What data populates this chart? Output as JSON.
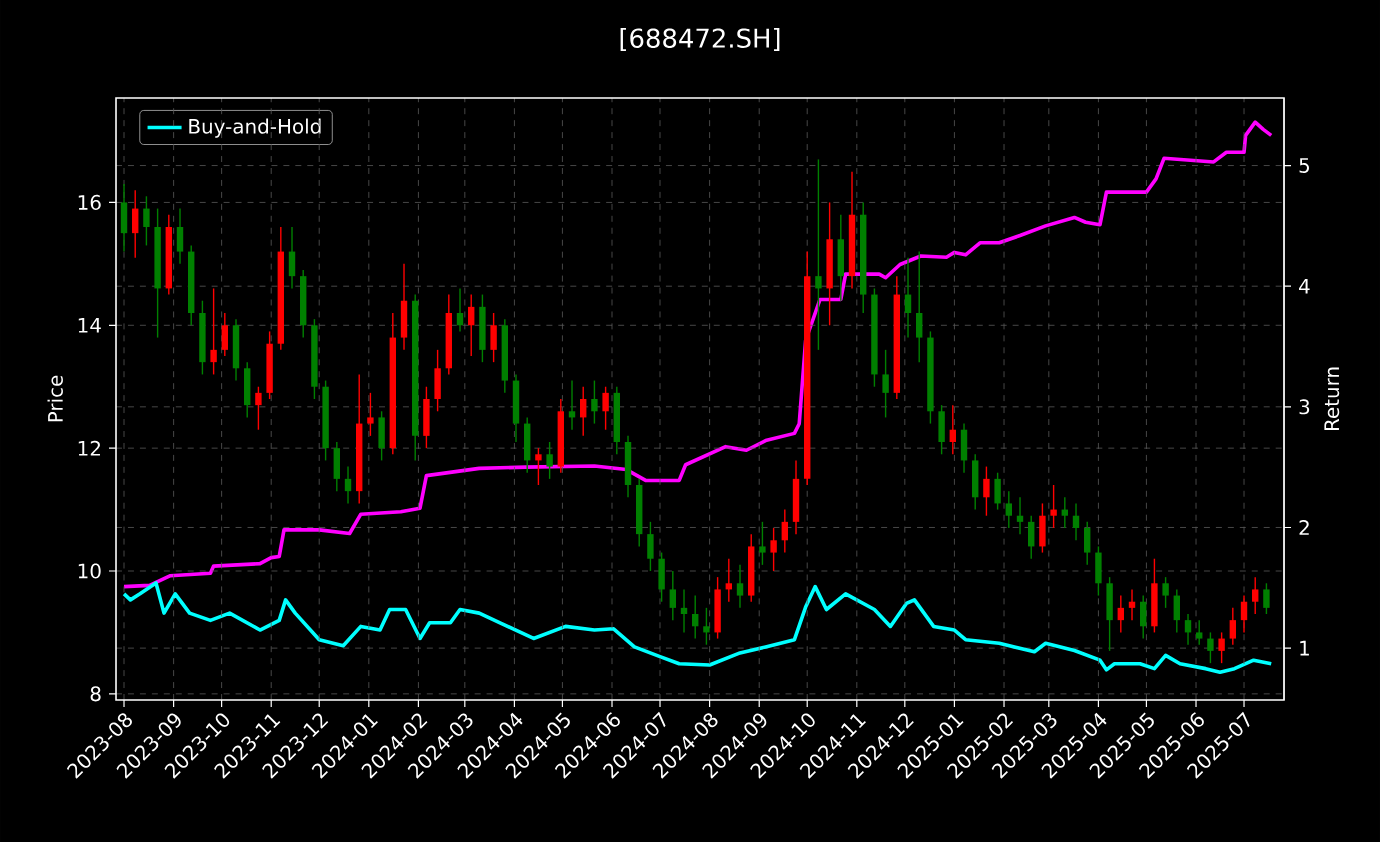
{
  "chart_data": {
    "type": "candlestick",
    "title": "[688472.SH]",
    "ylabel": "Price",
    "y2label": "Return",
    "x": [
      "2023-08-01",
      "2023-08-08",
      "2023-08-15",
      "2023-08-22",
      "2023-08-29",
      "2023-09-05",
      "2023-09-12",
      "2023-09-19",
      "2023-09-26",
      "2023-10-03",
      "2023-10-10",
      "2023-10-17",
      "2023-10-24",
      "2023-10-31",
      "2023-11-07",
      "2023-11-14",
      "2023-11-21",
      "2023-11-28",
      "2023-12-05",
      "2023-12-12",
      "2023-12-19",
      "2023-12-26",
      "2024-01-02",
      "2024-01-09",
      "2024-01-16",
      "2024-01-23",
      "2024-01-30",
      "2024-02-06",
      "2024-02-13",
      "2024-02-20",
      "2024-02-27",
      "2024-03-05",
      "2024-03-12",
      "2024-03-19",
      "2024-03-26",
      "2024-04-02",
      "2024-04-09",
      "2024-04-16",
      "2024-04-23",
      "2024-04-30",
      "2024-05-07",
      "2024-05-14",
      "2024-05-21",
      "2024-05-28",
      "2024-06-04",
      "2024-06-11",
      "2024-06-18",
      "2024-06-25",
      "2024-07-02",
      "2024-07-09",
      "2024-07-16",
      "2024-07-23",
      "2024-07-30",
      "2024-08-06",
      "2024-08-13",
      "2024-08-20",
      "2024-08-27",
      "2024-09-03",
      "2024-09-10",
      "2024-09-17",
      "2024-09-24",
      "2024-10-01",
      "2024-10-08",
      "2024-10-15",
      "2024-10-22",
      "2024-10-29",
      "2024-11-05",
      "2024-11-12",
      "2024-11-19",
      "2024-11-26",
      "2024-12-03",
      "2024-12-10",
      "2024-12-17",
      "2024-12-24",
      "2024-12-31",
      "2025-01-07",
      "2025-01-14",
      "2025-01-21",
      "2025-01-28",
      "2025-02-04",
      "2025-02-11",
      "2025-02-18",
      "2025-02-25",
      "2025-03-04",
      "2025-03-11",
      "2025-03-18",
      "2025-03-25",
      "2025-04-01",
      "2025-04-08",
      "2025-04-15",
      "2025-04-22",
      "2025-04-29",
      "2025-05-06",
      "2025-05-13",
      "2025-05-20",
      "2025-05-27",
      "2025-06-03",
      "2025-06-10",
      "2025-06-17",
      "2025-06-24",
      "2025-07-01",
      "2025-07-08",
      "2025-07-15"
    ],
    "ohlc": [
      [
        16.0,
        16.3,
        15.2,
        15.5
      ],
      [
        15.5,
        16.2,
        15.1,
        15.9
      ],
      [
        15.9,
        16.1,
        15.3,
        15.6
      ],
      [
        15.6,
        15.9,
        13.8,
        14.6
      ],
      [
        14.6,
        15.8,
        14.5,
        15.6
      ],
      [
        15.6,
        15.9,
        15.0,
        15.2
      ],
      [
        15.2,
        15.3,
        14.0,
        14.2
      ],
      [
        14.2,
        14.4,
        13.2,
        13.4
      ],
      [
        13.4,
        14.6,
        13.2,
        13.6
      ],
      [
        13.6,
        14.2,
        13.5,
        14.0
      ],
      [
        14.0,
        14.1,
        13.1,
        13.3
      ],
      [
        13.3,
        13.4,
        12.5,
        12.7
      ],
      [
        12.7,
        13.0,
        12.3,
        12.9
      ],
      [
        12.9,
        13.9,
        12.8,
        13.7
      ],
      [
        13.7,
        15.6,
        13.6,
        15.2
      ],
      [
        15.2,
        15.6,
        14.6,
        14.8
      ],
      [
        14.8,
        14.9,
        13.8,
        14.0
      ],
      [
        14.0,
        14.1,
        12.8,
        13.0
      ],
      [
        13.0,
        13.1,
        11.8,
        12.0
      ],
      [
        12.0,
        12.1,
        11.3,
        11.5
      ],
      [
        11.5,
        11.7,
        11.1,
        11.3
      ],
      [
        11.3,
        13.2,
        11.1,
        12.4
      ],
      [
        12.4,
        12.9,
        12.2,
        12.5
      ],
      [
        12.5,
        12.6,
        11.8,
        12.0
      ],
      [
        12.0,
        14.2,
        11.9,
        13.8
      ],
      [
        13.8,
        15.0,
        13.6,
        14.4
      ],
      [
        14.4,
        14.5,
        11.8,
        12.2
      ],
      [
        12.2,
        13.0,
        12.0,
        12.8
      ],
      [
        12.8,
        13.6,
        12.6,
        13.3
      ],
      [
        13.3,
        14.5,
        13.2,
        14.2
      ],
      [
        14.2,
        14.6,
        13.9,
        14.0
      ],
      [
        14.0,
        14.5,
        13.5,
        14.3
      ],
      [
        14.3,
        14.5,
        13.4,
        13.6
      ],
      [
        13.6,
        14.2,
        13.4,
        14.0
      ],
      [
        14.0,
        14.1,
        12.9,
        13.1
      ],
      [
        13.1,
        13.2,
        12.1,
        12.4
      ],
      [
        12.4,
        12.5,
        11.6,
        11.8
      ],
      [
        11.8,
        12.0,
        11.4,
        11.9
      ],
      [
        11.9,
        12.1,
        11.5,
        11.7
      ],
      [
        11.7,
        12.8,
        11.6,
        12.6
      ],
      [
        12.6,
        13.1,
        12.3,
        12.5
      ],
      [
        12.5,
        13.0,
        12.2,
        12.8
      ],
      [
        12.8,
        13.1,
        12.4,
        12.6
      ],
      [
        12.6,
        13.0,
        12.3,
        12.9
      ],
      [
        12.9,
        13.0,
        11.9,
        12.1
      ],
      [
        12.1,
        12.2,
        11.2,
        11.4
      ],
      [
        11.4,
        11.5,
        10.4,
        10.6
      ],
      [
        10.6,
        10.8,
        10.0,
        10.2
      ],
      [
        10.2,
        10.3,
        9.5,
        9.7
      ],
      [
        9.7,
        10.0,
        9.2,
        9.4
      ],
      [
        9.4,
        9.7,
        9.0,
        9.3
      ],
      [
        9.3,
        9.6,
        8.9,
        9.1
      ],
      [
        9.1,
        9.4,
        8.8,
        9.0
      ],
      [
        9.0,
        9.9,
        8.9,
        9.7
      ],
      [
        9.7,
        10.2,
        9.5,
        9.8
      ],
      [
        9.8,
        10.1,
        9.4,
        9.6
      ],
      [
        9.6,
        10.6,
        9.5,
        10.4
      ],
      [
        10.4,
        10.8,
        10.1,
        10.3
      ],
      [
        10.3,
        10.7,
        10.0,
        10.5
      ],
      [
        10.5,
        11.0,
        10.3,
        10.8
      ],
      [
        10.8,
        11.8,
        10.6,
        11.5
      ],
      [
        11.5,
        15.2,
        11.4,
        14.8
      ],
      [
        14.8,
        16.7,
        13.6,
        14.6
      ],
      [
        14.6,
        16.0,
        14.0,
        15.4
      ],
      [
        15.4,
        15.8,
        14.4,
        14.8
      ],
      [
        14.8,
        16.5,
        14.6,
        15.8
      ],
      [
        15.8,
        16.0,
        14.2,
        14.5
      ],
      [
        14.5,
        14.6,
        13.0,
        13.2
      ],
      [
        13.2,
        13.6,
        12.5,
        12.9
      ],
      [
        12.9,
        14.8,
        12.8,
        14.5
      ],
      [
        14.5,
        15.1,
        13.8,
        14.2
      ],
      [
        14.2,
        15.2,
        13.4,
        13.8
      ],
      [
        13.8,
        13.9,
        12.4,
        12.6
      ],
      [
        12.6,
        12.7,
        11.9,
        12.1
      ],
      [
        12.1,
        12.7,
        11.9,
        12.3
      ],
      [
        12.3,
        12.4,
        11.6,
        11.8
      ],
      [
        11.8,
        11.9,
        11.0,
        11.2
      ],
      [
        11.2,
        11.7,
        10.9,
        11.5
      ],
      [
        11.5,
        11.6,
        11.0,
        11.1
      ],
      [
        11.1,
        11.3,
        10.7,
        10.9
      ],
      [
        10.9,
        11.2,
        10.6,
        10.8
      ],
      [
        10.8,
        10.9,
        10.2,
        10.4
      ],
      [
        10.4,
        11.1,
        10.3,
        10.9
      ],
      [
        10.9,
        11.4,
        10.7,
        11.0
      ],
      [
        11.0,
        11.2,
        10.7,
        10.9
      ],
      [
        10.9,
        11.1,
        10.5,
        10.7
      ],
      [
        10.7,
        10.8,
        10.1,
        10.3
      ],
      [
        10.3,
        10.4,
        9.6,
        9.8
      ],
      [
        9.8,
        9.9,
        8.7,
        9.2
      ],
      [
        9.2,
        9.6,
        9.0,
        9.4
      ],
      [
        9.4,
        9.7,
        9.2,
        9.5
      ],
      [
        9.5,
        9.6,
        8.9,
        9.1
      ],
      [
        9.1,
        10.2,
        9.0,
        9.8
      ],
      [
        9.8,
        9.9,
        9.4,
        9.6
      ],
      [
        9.6,
        9.7,
        9.0,
        9.2
      ],
      [
        9.2,
        9.3,
        8.8,
        9.0
      ],
      [
        9.0,
        9.2,
        8.8,
        8.9
      ],
      [
        8.9,
        9.0,
        8.5,
        8.7
      ],
      [
        8.7,
        9.0,
        8.5,
        8.9
      ],
      [
        8.9,
        9.4,
        8.8,
        9.2
      ],
      [
        9.2,
        9.6,
        9.0,
        9.5
      ],
      [
        9.5,
        9.9,
        9.3,
        9.7
      ],
      [
        9.7,
        9.8,
        9.3,
        9.4
      ]
    ],
    "colors": [
      "#008000",
      "#ff0000",
      "#008000",
      "#008000",
      "#ff0000",
      "#008000",
      "#008000",
      "#008000",
      "#ff0000",
      "#ff0000",
      "#008000",
      "#008000",
      "#ff0000",
      "#ff0000",
      "#ff0000",
      "#008000",
      "#008000",
      "#008000",
      "#008000",
      "#008000",
      "#008000",
      "#ff0000",
      "#ff0000",
      "#008000",
      "#ff0000",
      "#ff0000",
      "#008000",
      "#ff0000",
      "#ff0000",
      "#ff0000",
      "#008000",
      "#ff0000",
      "#008000",
      "#ff0000",
      "#008000",
      "#008000",
      "#008000",
      "#ff0000",
      "#008000",
      "#ff0000",
      "#008000",
      "#ff0000",
      "#008000",
      "#ff0000",
      "#008000",
      "#008000",
      "#008000",
      "#008000",
      "#008000",
      "#008000",
      "#008000",
      "#008000",
      "#008000",
      "#ff0000",
      "#ff0000",
      "#008000",
      "#ff0000",
      "#008000",
      "#ff0000",
      "#ff0000",
      "#ff0000",
      "#ff0000",
      "#008000",
      "#ff0000",
      "#008000",
      "#ff0000",
      "#008000",
      "#008000",
      "#008000",
      "#ff0000",
      "#008000",
      "#008000",
      "#008000",
      "#008000",
      "#ff0000",
      "#008000",
      "#008000",
      "#ff0000",
      "#008000",
      "#008000",
      "#008000",
      "#008000",
      "#ff0000",
      "#ff0000",
      "#008000",
      "#008000",
      "#008000",
      "#008000",
      "#008000",
      "#ff0000",
      "#ff0000",
      "#008000",
      "#ff0000",
      "#008000",
      "#008000",
      "#008000",
      "#008000",
      "#008000",
      "#ff0000",
      "#ff0000",
      "#ff0000",
      "#ff0000",
      "#008000"
    ],
    "series": [
      {
        "type": "line",
        "axis": "y2",
        "color": "#ff00ff",
        "x": [
          "2023-08-01",
          "2023-08-17",
          "2023-08-30",
          "2023-09-24",
          "2023-09-26",
          "2023-10-25",
          "2023-11-01",
          "2023-11-06",
          "2023-11-09",
          "2023-12-01",
          "2023-12-20",
          "2023-12-27",
          "2024-01-21",
          "2024-02-02",
          "2024-02-06",
          "2024-03-10",
          "2024-04-08",
          "2024-05-21",
          "2024-06-10",
          "2024-06-22",
          "2024-07-13",
          "2024-07-17",
          "2024-08-11",
          "2024-08-24",
          "2024-09-05",
          "2024-09-23",
          "2024-09-26",
          "2024-09-30",
          "2024-10-09",
          "2024-10-22",
          "2024-10-25",
          "2024-11-15",
          "2024-11-19",
          "2024-11-28",
          "2024-12-11",
          "2024-12-27",
          "2025-01-01",
          "2025-01-08",
          "2025-01-17",
          "2025-01-29",
          "2025-02-11",
          "2025-02-27",
          "2025-03-17",
          "2025-03-24",
          "2025-04-02",
          "2025-04-06",
          "2025-05-01",
          "2025-05-07",
          "2025-05-12",
          "2025-06-12",
          "2025-06-20",
          "2025-07-01",
          "2025-07-02",
          "2025-07-08",
          "2025-07-13",
          "2025-07-18"
        ],
        "values": [
          1.51,
          1.52,
          1.6,
          1.62,
          1.68,
          1.7,
          1.75,
          1.76,
          1.98,
          1.98,
          1.95,
          2.11,
          2.13,
          2.16,
          2.43,
          2.49,
          2.5,
          2.51,
          2.48,
          2.39,
          2.39,
          2.52,
          2.67,
          2.64,
          2.72,
          2.78,
          2.86,
          3.55,
          3.89,
          3.89,
          4.1,
          4.1,
          4.07,
          4.18,
          4.25,
          4.24,
          4.28,
          4.26,
          4.36,
          4.36,
          4.42,
          4.5,
          4.57,
          4.53,
          4.51,
          4.78,
          4.78,
          4.89,
          5.06,
          5.03,
          5.11,
          5.11,
          5.25,
          5.36,
          5.3,
          5.25
        ]
      },
      {
        "type": "line",
        "axis": "y2",
        "name": "Buy-and-Hold",
        "color": "#00ffff",
        "x": [
          "2023-08-01",
          "2023-08-05",
          "2023-08-11",
          "2023-08-21",
          "2023-08-26",
          "2023-09-02",
          "2023-09-11",
          "2023-09-24",
          "2023-10-06",
          "2023-10-25",
          "2023-11-06",
          "2023-11-10",
          "2023-11-16",
          "2023-12-01",
          "2023-12-16",
          "2023-12-27",
          "2024-01-08",
          "2024-01-14",
          "2024-01-24",
          "2024-02-02",
          "2024-02-08",
          "2024-02-21",
          "2024-02-27",
          "2024-03-10",
          "2024-03-23",
          "2024-04-13",
          "2024-05-03",
          "2024-05-21",
          "2024-06-02",
          "2024-06-15",
          "2024-07-01",
          "2024-07-13",
          "2024-08-01",
          "2024-08-20",
          "2024-09-05",
          "2024-09-23",
          "2024-09-30",
          "2024-10-06",
          "2024-10-13",
          "2024-10-25",
          "2024-11-12",
          "2024-11-22",
          "2024-12-02",
          "2024-12-07",
          "2024-12-19",
          "2025-01-01",
          "2025-01-08",
          "2025-01-29",
          "2025-02-20",
          "2025-02-27",
          "2025-03-17",
          "2025-04-02",
          "2025-04-06",
          "2025-04-11",
          "2025-04-27",
          "2025-05-06",
          "2025-05-13",
          "2025-05-22",
          "2025-06-07",
          "2025-06-16",
          "2025-06-25",
          "2025-07-07",
          "2025-07-18"
        ],
        "values": [
          1.45,
          1.4,
          1.45,
          1.54,
          1.29,
          1.45,
          1.29,
          1.23,
          1.29,
          1.15,
          1.23,
          1.4,
          1.29,
          1.07,
          1.02,
          1.18,
          1.15,
          1.32,
          1.32,
          1.08,
          1.21,
          1.21,
          1.32,
          1.29,
          1.21,
          1.08,
          1.18,
          1.15,
          1.16,
          1.01,
          0.93,
          0.87,
          0.86,
          0.96,
          1.01,
          1.07,
          1.34,
          1.51,
          1.32,
          1.45,
          1.32,
          1.18,
          1.37,
          1.4,
          1.18,
          1.15,
          1.07,
          1.04,
          0.97,
          1.04,
          0.98,
          0.9,
          0.82,
          0.87,
          0.87,
          0.83,
          0.94,
          0.87,
          0.83,
          0.8,
          0.83,
          0.9,
          0.87
        ]
      }
    ],
    "xlim": [
      "2023-07-27",
      "2025-07-26"
    ],
    "xticks": [
      {
        "value": "2023-08-01",
        "label": "2023-08"
      },
      {
        "value": "2023-09-01",
        "label": "2023-09"
      },
      {
        "value": "2023-10-01",
        "label": "2023-10"
      },
      {
        "value": "2023-11-01",
        "label": "2023-11"
      },
      {
        "value": "2023-12-01",
        "label": "2023-12"
      },
      {
        "value": "2024-01-01",
        "label": "2024-01"
      },
      {
        "value": "2024-02-01",
        "label": "2024-02"
      },
      {
        "value": "2024-03-01",
        "label": "2024-03"
      },
      {
        "value": "2024-04-01",
        "label": "2024-04"
      },
      {
        "value": "2024-05-01",
        "label": "2024-05"
      },
      {
        "value": "2024-06-01",
        "label": "2024-06"
      },
      {
        "value": "2024-07-01",
        "label": "2024-07"
      },
      {
        "value": "2024-08-01",
        "label": "2024-08"
      },
      {
        "value": "2024-09-01",
        "label": "2024-09"
      },
      {
        "value": "2024-10-01",
        "label": "2024-10"
      },
      {
        "value": "2024-11-01",
        "label": "2024-11"
      },
      {
        "value": "2024-12-01",
        "label": "2024-12"
      },
      {
        "value": "2025-01-01",
        "label": "2025-01"
      },
      {
        "value": "2025-02-01",
        "label": "2025-02"
      },
      {
        "value": "2025-03-01",
        "label": "2025-03"
      },
      {
        "value": "2025-04-01",
        "label": "2025-04"
      },
      {
        "value": "2025-05-01",
        "label": "2025-05"
      },
      {
        "value": "2025-06-01",
        "label": "2025-06"
      },
      {
        "value": "2025-07-01",
        "label": "2025-07"
      }
    ],
    "ylim": [
      7.9,
      17.7
    ],
    "yticks": [
      8,
      10,
      12,
      14,
      16
    ],
    "y2lim": [
      0.57,
      5.56
    ],
    "y2ticks": [
      1,
      2,
      3,
      4,
      5
    ],
    "grid": true,
    "legend": "top left",
    "line_style": "solid",
    "marker": "none"
  }
}
